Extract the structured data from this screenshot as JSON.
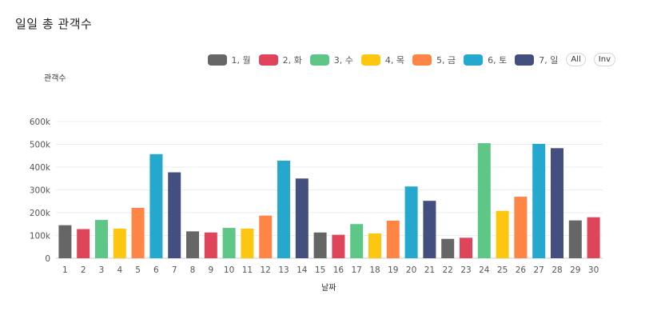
{
  "title": "일일 총 관객수",
  "legend": {
    "all_label": "All",
    "inv_label": "Inv",
    "items": [
      {
        "label": "1, 월",
        "color": "#666666"
      },
      {
        "label": "2, 화",
        "color": "#e0445a"
      },
      {
        "label": "3, 수",
        "color": "#5ec686"
      },
      {
        "label": "4, 목",
        "color": "#fcc611"
      },
      {
        "label": "5, 금",
        "color": "#ff8547"
      },
      {
        "label": "6, 토",
        "color": "#24a8cd"
      },
      {
        "label": "7, 일",
        "color": "#434f7f"
      }
    ]
  },
  "chart_data": {
    "type": "bar",
    "title": "일일 총 관객수",
    "xlabel": "날짜",
    "ylabel": "관객수",
    "ylim": [
      0,
      600000
    ],
    "yticks": [
      0,
      100000,
      200000,
      300000,
      400000,
      500000,
      600000
    ],
    "ytick_labels": [
      "0",
      "100k",
      "200k",
      "300k",
      "400k",
      "500k",
      "600k"
    ],
    "grid": true,
    "legend_position": "top-right",
    "categories": [
      "1",
      "2",
      "3",
      "4",
      "5",
      "6",
      "7",
      "8",
      "9",
      "10",
      "11",
      "12",
      "13",
      "14",
      "15",
      "16",
      "17",
      "18",
      "19",
      "20",
      "21",
      "22",
      "23",
      "24",
      "25",
      "26",
      "27",
      "28",
      "29",
      "30"
    ],
    "values": [
      145000,
      128000,
      168000,
      130000,
      221000,
      457000,
      377000,
      118000,
      113000,
      133000,
      130000,
      187000,
      428000,
      350000,
      113000,
      103000,
      150000,
      109000,
      165000,
      315000,
      252000,
      85000,
      90000,
      505000,
      208000,
      270000,
      502000,
      483000,
      166000,
      180000
    ],
    "weekday": [
      1,
      2,
      3,
      4,
      5,
      6,
      7,
      1,
      2,
      3,
      4,
      5,
      6,
      7,
      1,
      2,
      3,
      4,
      5,
      6,
      7,
      1,
      2,
      3,
      4,
      5,
      6,
      7,
      1,
      2
    ]
  }
}
